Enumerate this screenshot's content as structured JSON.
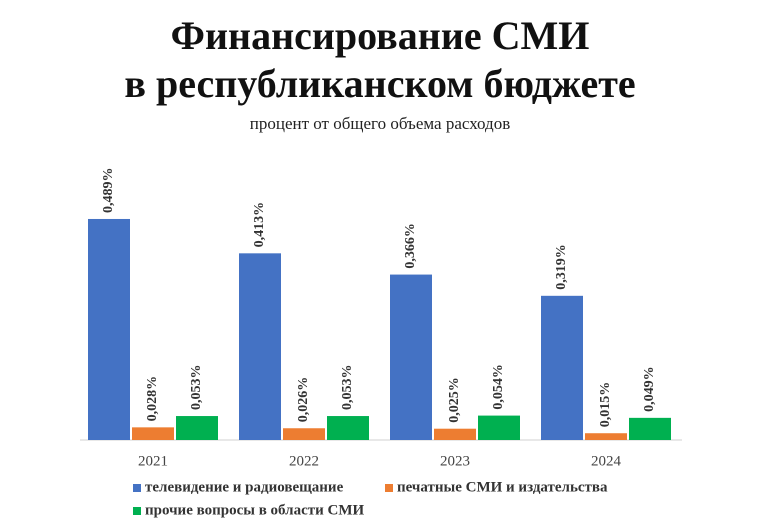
{
  "chart_data": {
    "type": "bar",
    "title": [
      "Финансирование СМИ",
      "в республиканском бюджете"
    ],
    "subtitle": "процент от общего объема расходов",
    "categories": [
      "2021",
      "2022",
      "2023",
      "2024"
    ],
    "series": [
      {
        "name": "телевидение и радиовещание",
        "color": "#4472c4",
        "values": [
          0.489,
          0.413,
          0.366,
          0.319
        ],
        "value_labels": [
          "0,489%",
          "0,413%",
          "0,366%",
          "0,319%"
        ]
      },
      {
        "name": "печатные СМИ и издательства",
        "color": "#ed7d31",
        "values": [
          0.028,
          0.026,
          0.025,
          0.015
        ],
        "value_labels": [
          "0,028%",
          "0,026%",
          "0,025%",
          "0,015%"
        ]
      },
      {
        "name": "прочие вопросы в области СМИ",
        "color": "#00b050",
        "values": [
          0.053,
          0.053,
          0.054,
          0.049
        ],
        "value_labels": [
          "0,053%",
          "0,053%",
          "0,054%",
          "0,049%"
        ]
      }
    ]
  }
}
